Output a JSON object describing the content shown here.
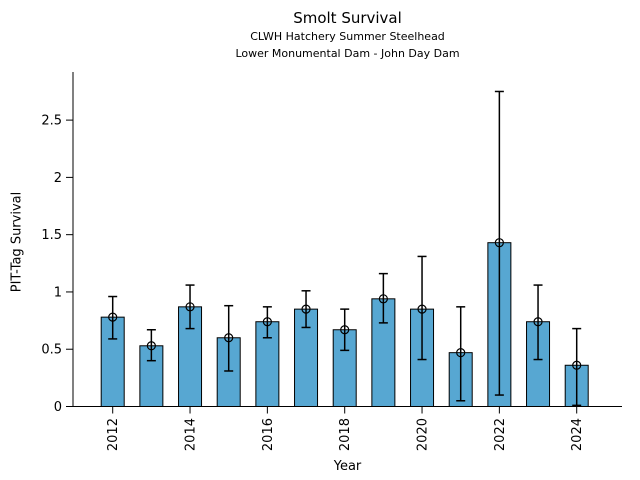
{
  "figure": {
    "title": "Smolt Survival",
    "subtitle1": "CLWH Hatchery Summer Steelhead",
    "subtitle2": "Lower Monumental Dam - John Day Dam"
  },
  "chart_data": {
    "type": "bar",
    "title": "Smolt Survival",
    "subtitle_lines": [
      "CLWH Hatchery Summer Steelhead",
      "Lower Monumental Dam - John Day Dam"
    ],
    "xlabel": "Year",
    "ylabel": "PIT-Tag Survival",
    "categories": [
      2012,
      2013,
      2014,
      2015,
      2016,
      2017,
      2018,
      2019,
      2020,
      2021,
      2022,
      2023,
      2024
    ],
    "values": [
      0.78,
      0.53,
      0.87,
      0.6,
      0.74,
      0.85,
      0.67,
      0.94,
      0.85,
      0.47,
      1.43,
      0.74,
      0.36
    ],
    "error_low": [
      0.59,
      0.4,
      0.68,
      0.31,
      0.6,
      0.69,
      0.49,
      0.73,
      0.41,
      0.05,
      0.1,
      0.41,
      0.01
    ],
    "error_high": [
      0.96,
      0.67,
      1.06,
      0.88,
      0.87,
      1.01,
      0.85,
      1.16,
      1.31,
      0.87,
      2.75,
      1.06,
      0.68
    ],
    "yticks": [
      0,
      0.5,
      1,
      1.5,
      2,
      2.5
    ],
    "ytick_labels": [
      "0",
      "0.5",
      "1",
      "1.5",
      "2",
      "2.5"
    ],
    "xtick_years": [
      2012,
      2014,
      2016,
      2018,
      2020,
      2022,
      2024
    ],
    "ylim": [
      0,
      2.92
    ],
    "bar_color": "#57a7d2",
    "edge_color": "#000000",
    "error_color": "#000000",
    "marker": "open-circle",
    "grid": false,
    "legend": null
  }
}
